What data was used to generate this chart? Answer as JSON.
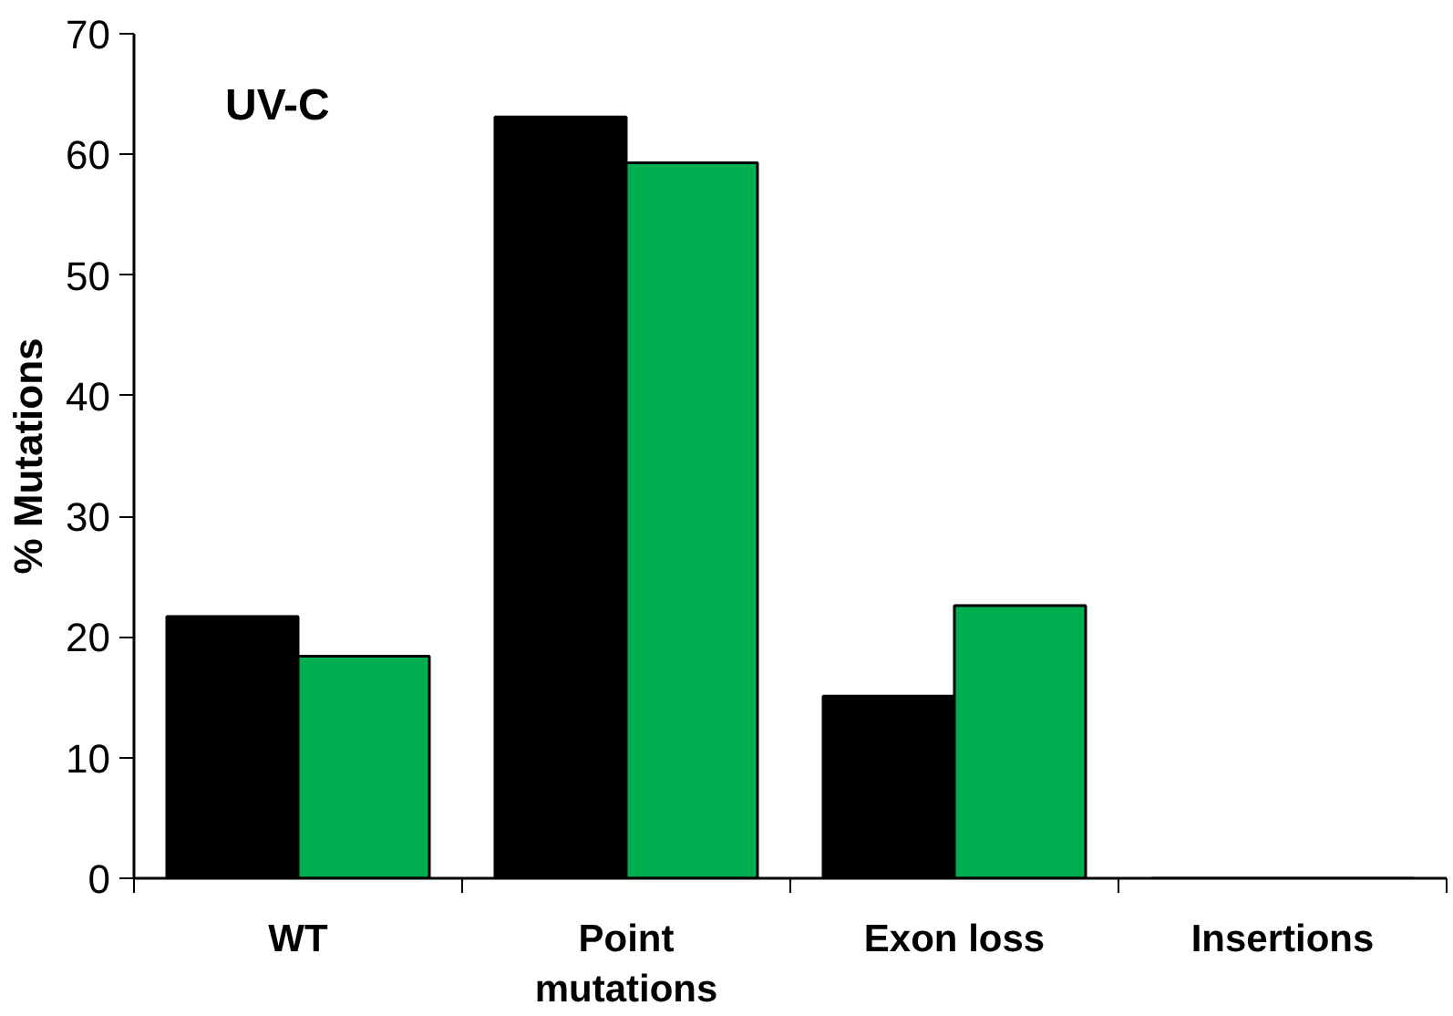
{
  "chart_data": {
    "type": "bar",
    "title": "UV-C",
    "ylabel": "% Mutations",
    "categories": [
      "WT",
      "Point\nmutations",
      "Exon loss",
      "Insertions"
    ],
    "series": [
      {
        "color": "#000000",
        "values": [
          21.7,
          63.1,
          15.1,
          0
        ]
      },
      {
        "color": "#00b050",
        "values": [
          18.4,
          59.3,
          22.6,
          0
        ]
      }
    ],
    "ylim": [
      0,
      70
    ],
    "yticks": [
      0,
      10,
      20,
      30,
      40,
      50,
      60,
      70
    ],
    "grid": false
  }
}
